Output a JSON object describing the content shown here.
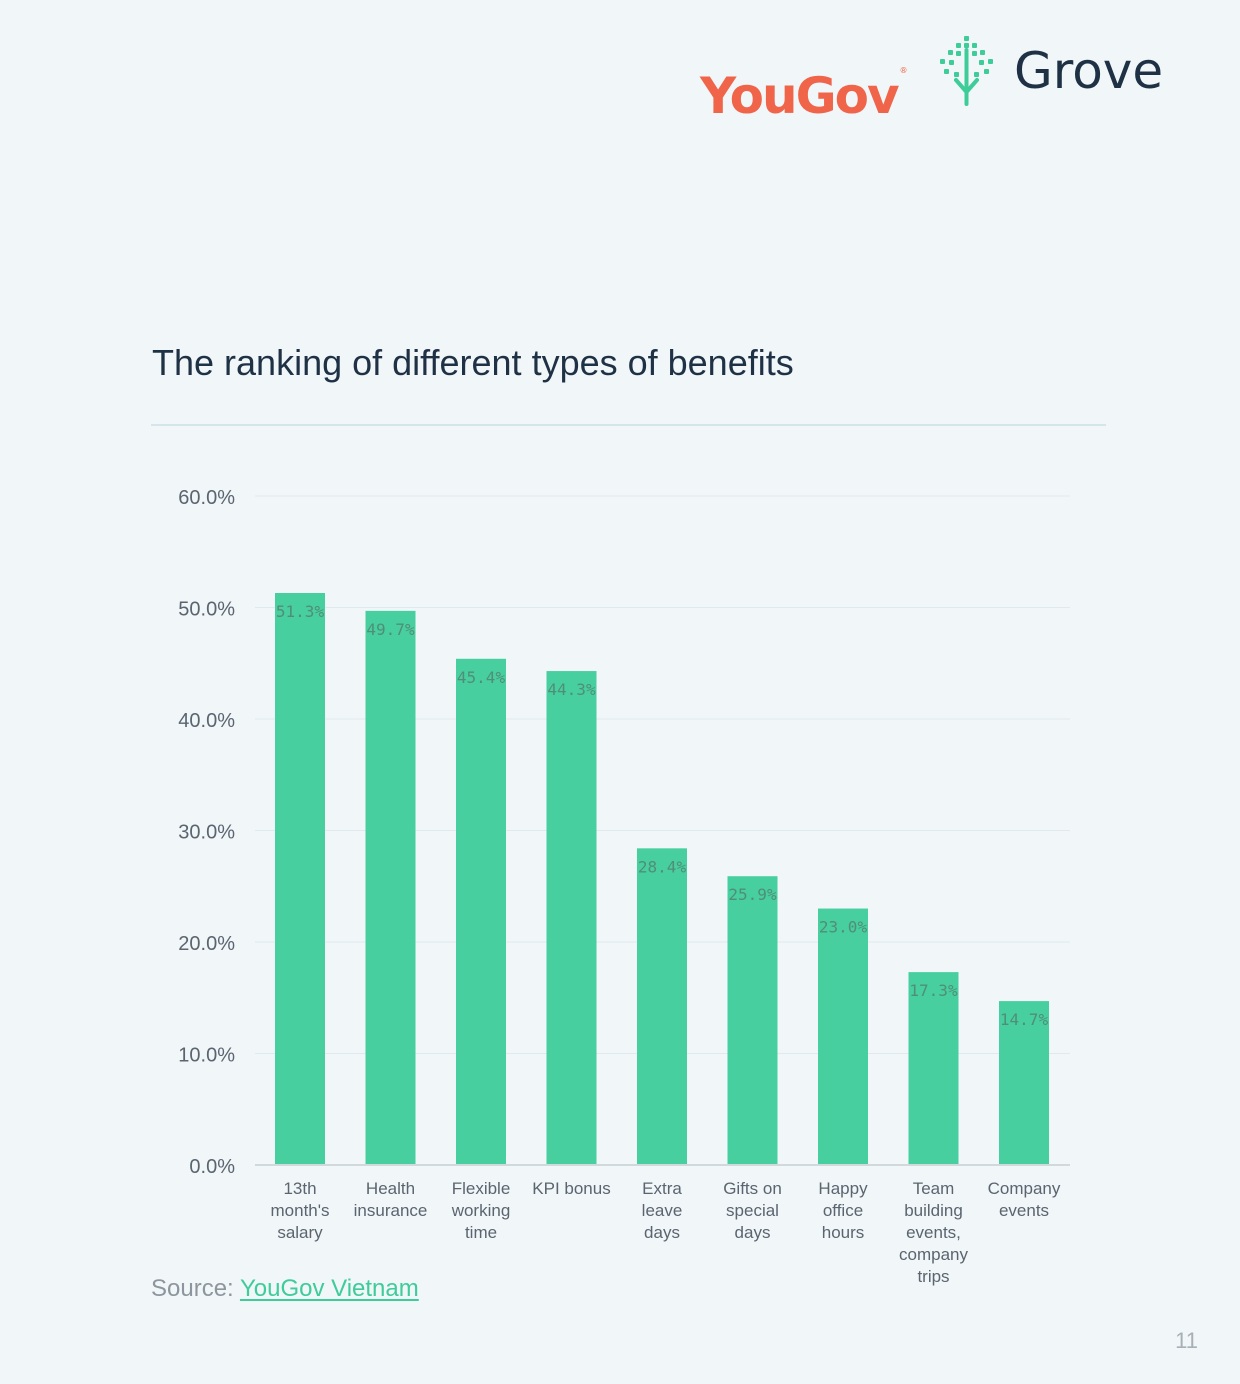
{
  "header": {
    "yougov_logo_text": "YouGov",
    "yougov_registered_mark": "®",
    "grove_logo_text": "Grove"
  },
  "colors": {
    "background": "#f1f6f9",
    "bar": "#48cf9f",
    "title": "#1f3145",
    "yougov_brand": "#f06449",
    "grove_brand": "#3ecc99",
    "source_link": "#3ecc99"
  },
  "footer": {
    "source_label": "Source: ",
    "source_link_text": "YouGov Vietnam",
    "page_number": "11"
  },
  "chart_data": {
    "type": "bar",
    "title": "The ranking of different types of benefits",
    "xlabel": "",
    "ylabel": "",
    "categories": [
      "13th month's salary",
      "Health insurance",
      "Flexible working time",
      "KPI bonus",
      "Extra leave days",
      "Gifts on special days",
      "Happy office hours",
      "Team building events, company trips",
      "Company events"
    ],
    "category_label_lines": [
      [
        "13th",
        "month's",
        "salary"
      ],
      [
        "Health",
        "insurance"
      ],
      [
        "Flexible",
        "working",
        "time"
      ],
      [
        "KPI bonus"
      ],
      [
        "Extra",
        "leave",
        "days"
      ],
      [
        "Gifts on",
        "special",
        "days"
      ],
      [
        "Happy",
        "office",
        "hours"
      ],
      [
        "Team",
        "building",
        "events,",
        "company",
        "trips"
      ],
      [
        "Company",
        "events"
      ]
    ],
    "values": [
      51.3,
      49.7,
      45.4,
      44.3,
      28.4,
      25.9,
      23.0,
      17.3,
      14.7
    ],
    "data_labels": [
      "51.3%",
      "49.7%",
      "45.4%",
      "44.3%",
      "28.4%",
      "25.9%",
      "23.0%",
      "17.3%",
      "14.7%"
    ],
    "y_ticks": [
      0,
      10,
      20,
      30,
      40,
      50,
      60
    ],
    "y_tick_labels": [
      "0.0%",
      "10.0%",
      "20.0%",
      "30.0%",
      "40.0%",
      "50.0%",
      "60.0%"
    ],
    "ylim": [
      0,
      60
    ],
    "grid": true,
    "legend": "none"
  }
}
